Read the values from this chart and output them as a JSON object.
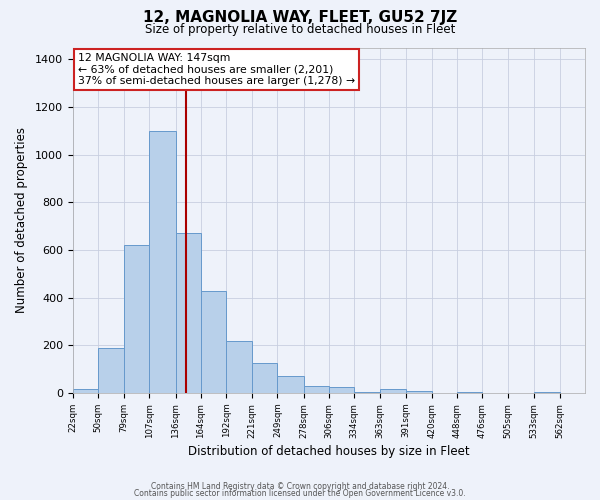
{
  "title": "12, MAGNOLIA WAY, FLEET, GU52 7JZ",
  "subtitle": "Size of property relative to detached houses in Fleet",
  "xlabel": "Distribution of detached houses by size in Fleet",
  "ylabel": "Number of detached properties",
  "bar_color": "#b8d0ea",
  "bar_edge_color": "#6699cc",
  "vline_x": 147,
  "vline_color": "#aa0000",
  "annotation_title": "12 MAGNOLIA WAY: 147sqm",
  "annotation_line1": "← 63% of detached houses are smaller (2,201)",
  "annotation_line2": "37% of semi-detached houses are larger (1,278) →",
  "annotation_box_edge": "#cc2222",
  "bin_edges": [
    22,
    50,
    79,
    107,
    136,
    164,
    192,
    221,
    249,
    278,
    306,
    334,
    363,
    391,
    420,
    448,
    476,
    505,
    533,
    562,
    590
  ],
  "bar_heights": [
    15,
    190,
    620,
    1100,
    670,
    430,
    220,
    125,
    70,
    30,
    25,
    5,
    15,
    10,
    0,
    2,
    0,
    0,
    2,
    0
  ],
  "ylim": [
    0,
    1450
  ],
  "yticks": [
    0,
    200,
    400,
    600,
    800,
    1000,
    1200,
    1400
  ],
  "footer1": "Contains HM Land Registry data © Crown copyright and database right 2024.",
  "footer2": "Contains public sector information licensed under the Open Government Licence v3.0.",
  "background_color": "#eef2fa",
  "plot_background": "#eef2fa",
  "grid_color": "#c8cfe0"
}
